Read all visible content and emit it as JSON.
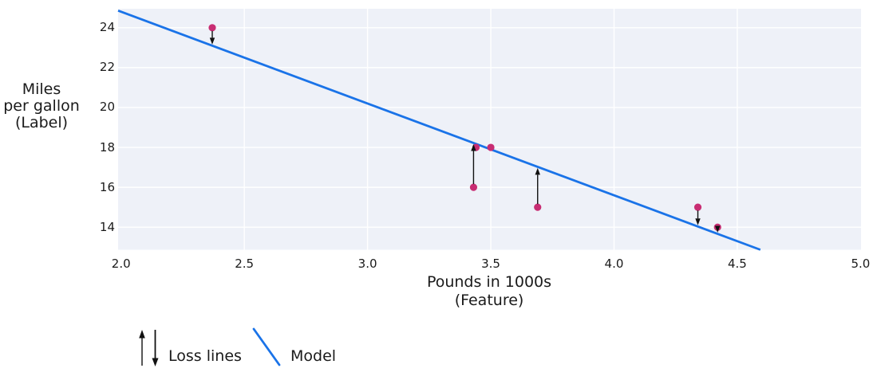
{
  "chart_data": {
    "type": "scatter",
    "xlabel": "Pounds in 1000s\n(Feature)",
    "ylabel": "Miles\nper gallon\n(Label)",
    "xlim": [
      1.988,
      5.002
    ],
    "ylim": [
      12.87,
      24.95
    ],
    "grid": true,
    "legend_position": "below-left",
    "x_ticks": [
      {
        "v": 2.0,
        "label": "2.0"
      },
      {
        "v": 2.5,
        "label": "2.5"
      },
      {
        "v": 3.0,
        "label": "3.0"
      },
      {
        "v": 3.5,
        "label": "3.5"
      },
      {
        "v": 4.0,
        "label": "4.0"
      },
      {
        "v": 4.5,
        "label": "4.5"
      },
      {
        "v": 5.0,
        "label": "5.0"
      }
    ],
    "y_ticks": [
      {
        "v": 14,
        "label": "14"
      },
      {
        "v": 16,
        "label": "16"
      },
      {
        "v": 18,
        "label": "18"
      },
      {
        "v": 20,
        "label": "20"
      },
      {
        "v": 22,
        "label": "22"
      },
      {
        "v": 24,
        "label": "24"
      }
    ],
    "points": [
      {
        "x": 2.37,
        "y": 24,
        "loss_arrow": true
      },
      {
        "x": 3.43,
        "y": 16,
        "loss_arrow": true
      },
      {
        "x": 3.44,
        "y": 18,
        "loss_arrow": false
      },
      {
        "x": 3.5,
        "y": 18,
        "loss_arrow": false
      },
      {
        "x": 3.69,
        "y": 15,
        "loss_arrow": true
      },
      {
        "x": 4.34,
        "y": 15,
        "loss_arrow": true
      },
      {
        "x": 4.42,
        "y": 14,
        "loss_arrow": true
      }
    ],
    "model": {
      "slope": -4.6,
      "intercept": 34
    },
    "legend": [
      {
        "label": "Loss lines",
        "icon": "loss-arrows-icon"
      },
      {
        "label": "Model",
        "icon": "model-line-icon"
      }
    ],
    "colors": {
      "model_line": "#1a73e8",
      "point": "#c82d73",
      "arrow": "#111111",
      "plot_bg": "#eef1f8",
      "grid": "#ffffff",
      "text": "#1a1a1a"
    }
  }
}
